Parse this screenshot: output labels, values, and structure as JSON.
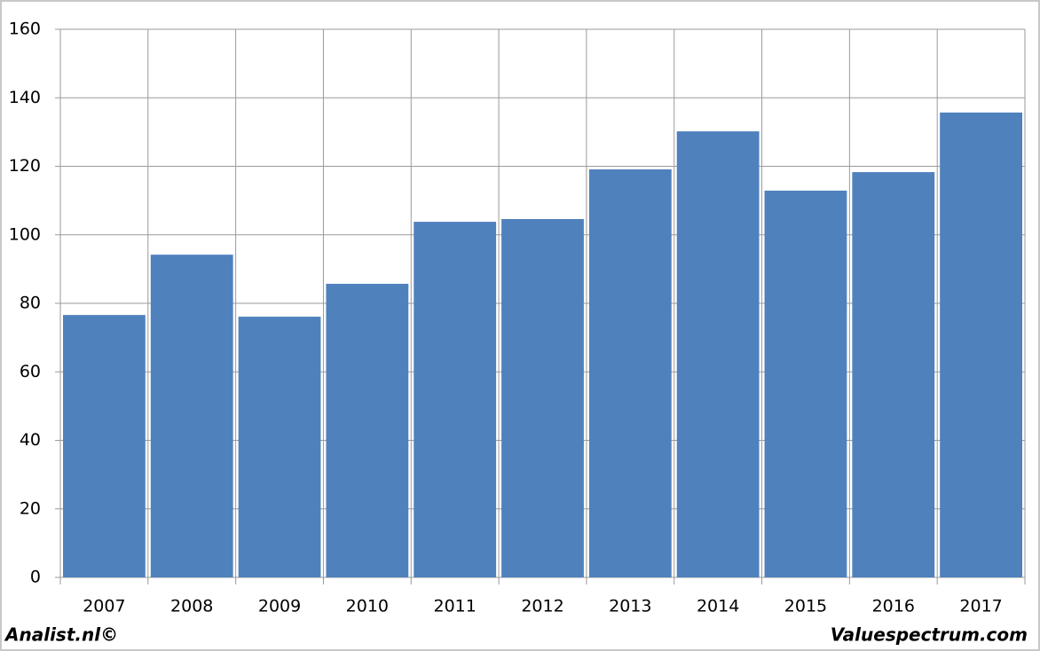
{
  "chart_data": {
    "type": "bar",
    "categories": [
      "2007",
      "2008",
      "2009",
      "2010",
      "2011",
      "2012",
      "2013",
      "2014",
      "2015",
      "2016",
      "2017"
    ],
    "values": [
      76.6,
      94.2,
      76.1,
      85.7,
      103.8,
      104.6,
      119.1,
      130.2,
      112.9,
      118.3,
      135.7
    ],
    "color": "#4f81bd",
    "ylim": [
      0,
      160
    ],
    "yticks": [
      0,
      20,
      40,
      60,
      80,
      100,
      120,
      140,
      160
    ],
    "grid": true,
    "footer_left": "Analist.nl©",
    "footer_right": "Valuespectrum.com"
  }
}
